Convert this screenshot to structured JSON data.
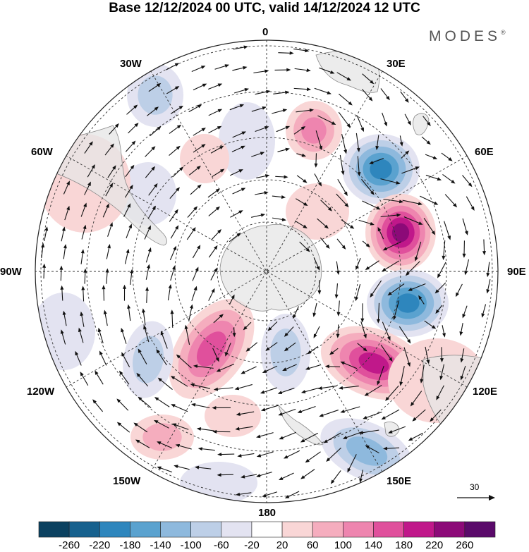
{
  "title": "Base 12/12/2024 00 UTC, valid 14/12/2024 12 UTC",
  "brand": "MODES",
  "brand_mark": "®",
  "longitude_labels": {
    "lon_0": "0",
    "lon_30e": "30E",
    "lon_60e": "60E",
    "lon_90e": "90E",
    "lon_120e": "120E",
    "lon_150e": "150E",
    "lon_180": "180",
    "lon_150w": "150W",
    "lon_120w": "120W",
    "lon_90w": "90W",
    "lon_60w": "60W",
    "lon_30w": "30W"
  },
  "reference_vector": {
    "value": "30"
  },
  "colorbar": {
    "levels": [
      "-260",
      "-220",
      "-180",
      "-140",
      "-100",
      "-60",
      "-20",
      "20",
      "60",
      "100",
      "140",
      "180",
      "220",
      "260"
    ],
    "colors": [
      "#0b4160",
      "#17618e",
      "#2e86bd",
      "#5aa2cf",
      "#8eb9dd",
      "#bdcfe7",
      "#e3e3f1",
      "#ffffff",
      "#f9d6d6",
      "#f5adbe",
      "#ee85af",
      "#e0509c",
      "#c0188a",
      "#8c0a78",
      "#5a0a6a"
    ]
  },
  "palette": {
    "land": "#e6e6e6",
    "coast": "#888888",
    "grid": "#333333",
    "vectors": "#111111"
  }
}
